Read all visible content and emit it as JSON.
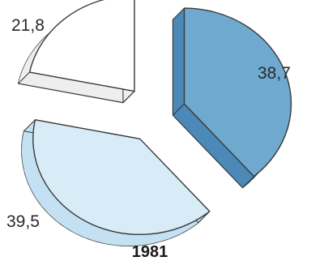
{
  "chart_data": {
    "type": "pie",
    "title": "1981",
    "values": [
      38.7,
      39.5,
      21.8
    ],
    "labels": [
      "38,7",
      "39,5",
      "21,8"
    ],
    "colors": {
      "slice_1_top": "#6fa9cf",
      "slice_1_side": "#4b8ab8",
      "slice_2_top": "#d8ecf8",
      "slice_2_side": "#c4e0f3",
      "slice_3_top": "#ffffff",
      "slice_3_side": "#eeeeee",
      "outline": "#3a3a3a"
    },
    "style": "exploded-3d",
    "legend": "none"
  }
}
